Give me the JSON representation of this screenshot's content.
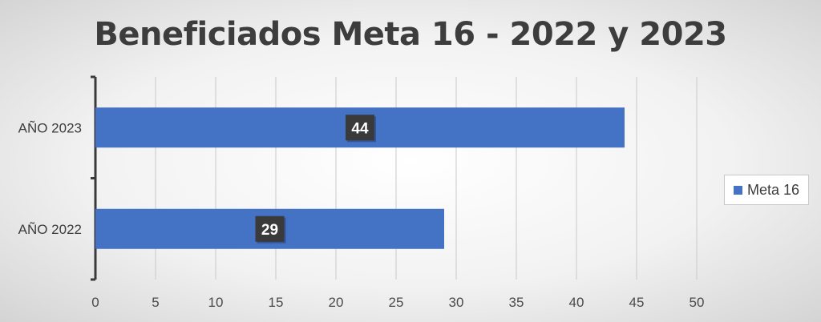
{
  "chart_data": {
    "type": "bar",
    "orientation": "horizontal",
    "title": "Beneficiados Meta 16 - 2022 y 2023",
    "categories": [
      "AÑO 2022",
      "AÑO 2023"
    ],
    "series": [
      {
        "name": "Meta 16",
        "values": [
          29,
          44
        ],
        "color": "#4472c4"
      }
    ],
    "data_labels": [
      "29",
      "44"
    ],
    "x_ticks": [
      "0",
      "5",
      "10",
      "15",
      "20",
      "25",
      "30",
      "35",
      "40",
      "45",
      "50"
    ],
    "xlim": [
      0,
      50
    ],
    "grid": true,
    "legend_position": "right"
  }
}
